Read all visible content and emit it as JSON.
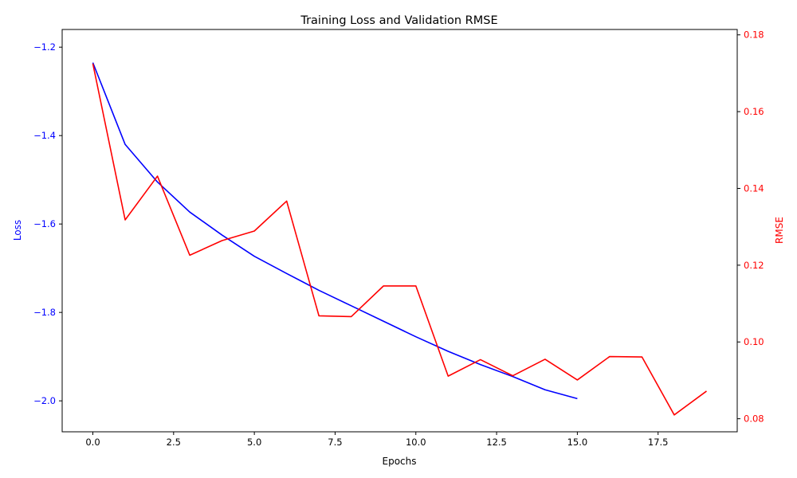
{
  "chart_data": {
    "type": "line",
    "title": "Training Loss and Validation RMSE",
    "xlabel": "Epochs",
    "ylabel_left": "Loss",
    "ylabel_right": "RMSE",
    "xlim": [
      -0.95,
      19.95
    ],
    "x_ticks": [
      0.0,
      2.5,
      5.0,
      7.5,
      10.0,
      12.5,
      15.0,
      17.5
    ],
    "x_tick_labels": [
      "0.0",
      "2.5",
      "5.0",
      "7.5",
      "10.0",
      "12.5",
      "15.0",
      "17.5"
    ],
    "ylim_left": [
      -2.07,
      -1.16
    ],
    "y_ticks_left": [
      -1.2,
      -1.4,
      -1.6,
      -1.8,
      -2.0
    ],
    "y_tick_labels_left": [
      "−1.2",
      "−1.4",
      "−1.6",
      "−1.8",
      "−2.0"
    ],
    "ylim_right": [
      0.0766,
      0.1814
    ],
    "y_ticks_right": [
      0.08,
      0.1,
      0.12,
      0.14,
      0.16,
      0.18
    ],
    "y_tick_labels_right": [
      "0.08",
      "0.10",
      "0.12",
      "0.14",
      "0.16",
      "0.18"
    ],
    "grid": false,
    "series": [
      {
        "axis": "left",
        "color": "#0000ff",
        "x": [
          0,
          1,
          2,
          3,
          4,
          5,
          6,
          7,
          8,
          9,
          10,
          11,
          12,
          13,
          14,
          15
        ],
        "values": [
          -1.235,
          -1.42,
          -1.505,
          -1.573,
          -1.625,
          -1.673,
          -1.712,
          -1.75,
          -1.785,
          -1.82,
          -1.855,
          -1.888,
          -1.918,
          -1.945,
          -1.975,
          -1.995
        ]
      },
      {
        "axis": "right",
        "color": "#ff0000",
        "x": [
          0,
          1,
          2,
          3,
          4,
          5,
          6,
          7,
          8,
          9,
          10,
          11,
          12,
          13,
          14,
          15,
          16,
          17,
          18,
          19
        ],
        "values": [
          0.1725,
          0.1318,
          0.1432,
          0.1226,
          0.1264,
          0.1289,
          0.1367,
          0.1068,
          0.1066,
          0.1146,
          0.1146,
          0.0911,
          0.0954,
          0.0912,
          0.0955,
          0.0901,
          0.0962,
          0.0961,
          0.081,
          0.0872
        ]
      }
    ]
  },
  "colors": {
    "left_axis": "#0000ff",
    "right_axis": "#ff0000",
    "axes": "#000000",
    "background": "#ffffff"
  }
}
